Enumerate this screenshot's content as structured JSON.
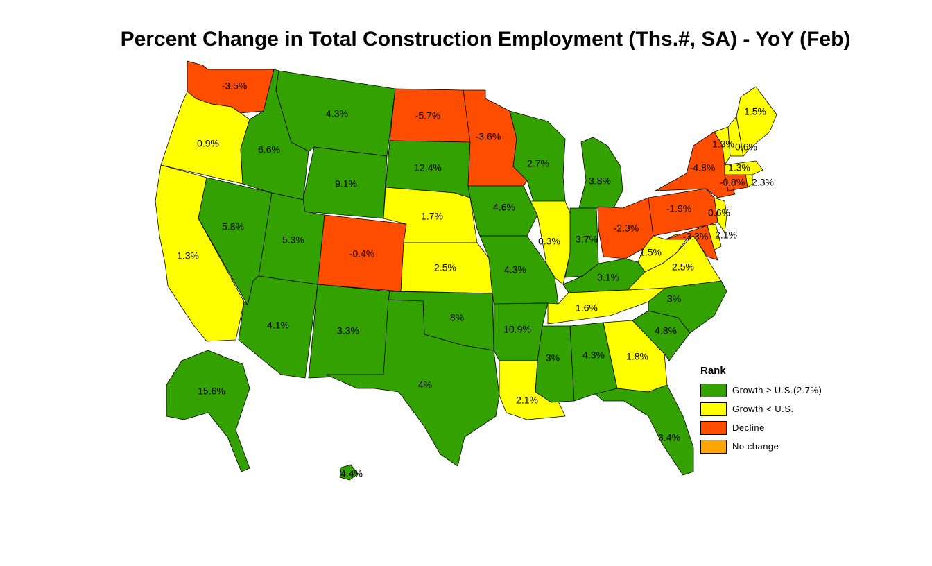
{
  "title": "Percent Change in Total Construction Employment (Ths.#, SA) - YoY (Feb)",
  "colors": {
    "growth_above": "#33a100",
    "growth_below": "#ffff00",
    "decline": "#ff4d00",
    "no_change": "#ffa500"
  },
  "legend": {
    "title": "Rank",
    "items": [
      {
        "label": "Growth ≥ U.S.(2.7%)",
        "color_key": "growth_above"
      },
      {
        "label": "Growth < U.S.",
        "color_key": "growth_below"
      },
      {
        "label": "Decline",
        "color_key": "decline"
      },
      {
        "label": "No change",
        "color_key": "no_change"
      }
    ]
  },
  "states": [
    {
      "id": "WA",
      "value": "-3.5%",
      "category": "decline"
    },
    {
      "id": "OR",
      "value": "0.9%",
      "category": "growth_below"
    },
    {
      "id": "CA",
      "value": "1.3%",
      "category": "growth_below"
    },
    {
      "id": "NV",
      "value": "5.8%",
      "category": "growth_above"
    },
    {
      "id": "ID",
      "value": "6.6%",
      "category": "growth_above"
    },
    {
      "id": "MT",
      "value": "4.3%",
      "category": "growth_above"
    },
    {
      "id": "WY",
      "value": "9.1%",
      "category": "growth_above"
    },
    {
      "id": "UT",
      "value": "5.3%",
      "category": "growth_above"
    },
    {
      "id": "AZ",
      "value": "4.1%",
      "category": "growth_above"
    },
    {
      "id": "CO",
      "value": "-0.4%",
      "category": "decline"
    },
    {
      "id": "NM",
      "value": "3.3%",
      "category": "growth_above"
    },
    {
      "id": "ND",
      "value": "-5.7%",
      "category": "decline"
    },
    {
      "id": "SD",
      "value": "12.4%",
      "category": "growth_above"
    },
    {
      "id": "NE",
      "value": "1.7%",
      "category": "growth_below"
    },
    {
      "id": "KS",
      "value": "2.5%",
      "category": "growth_below"
    },
    {
      "id": "OK",
      "value": "8%",
      "category": "growth_above"
    },
    {
      "id": "TX",
      "value": "4%",
      "category": "growth_above"
    },
    {
      "id": "MN",
      "value": "-3.6%",
      "category": "decline"
    },
    {
      "id": "IA",
      "value": "4.6%",
      "category": "growth_above"
    },
    {
      "id": "MO",
      "value": "4.3%",
      "category": "growth_above"
    },
    {
      "id": "AR",
      "value": "10.9%",
      "category": "growth_above"
    },
    {
      "id": "LA",
      "value": "2.1%",
      "category": "growth_below"
    },
    {
      "id": "WI",
      "value": "2.7%",
      "category": "growth_above"
    },
    {
      "id": "IL",
      "value": "0.3%",
      "category": "growth_below"
    },
    {
      "id": "MI",
      "value": "3.8%",
      "category": "growth_above"
    },
    {
      "id": "IN",
      "value": "3.7%",
      "category": "growth_above"
    },
    {
      "id": "OH",
      "value": "-2.3%",
      "category": "decline"
    },
    {
      "id": "KY",
      "value": "3.1%",
      "category": "growth_above"
    },
    {
      "id": "TN",
      "value": "1.6%",
      "category": "growth_below"
    },
    {
      "id": "MS",
      "value": "3%",
      "category": "growth_above"
    },
    {
      "id": "AL",
      "value": "4.3%",
      "category": "growth_above"
    },
    {
      "id": "GA",
      "value": "1.8%",
      "category": "growth_below"
    },
    {
      "id": "FL",
      "value": "3.4%",
      "category": "growth_above"
    },
    {
      "id": "SC",
      "value": "4.8%",
      "category": "growth_above"
    },
    {
      "id": "NC",
      "value": "3%",
      "category": "growth_above"
    },
    {
      "id": "VA",
      "value": "2.5%",
      "category": "growth_below"
    },
    {
      "id": "WV",
      "value": "1.5%",
      "category": "growth_below"
    },
    {
      "id": "PA",
      "value": "-1.9%",
      "category": "decline"
    },
    {
      "id": "NY",
      "value": "-4.8%",
      "category": "decline"
    },
    {
      "id": "MD",
      "value": "-3.3%",
      "category": "decline"
    },
    {
      "id": "DE",
      "value": "2.1%",
      "category": "growth_below"
    },
    {
      "id": "NJ",
      "value": "0.6%",
      "category": "growth_below"
    },
    {
      "id": "CT",
      "value": "-0.8%",
      "category": "decline"
    },
    {
      "id": "RI",
      "value": "2.3%",
      "category": "growth_below"
    },
    {
      "id": "MA",
      "value": "1.3%",
      "category": "growth_below"
    },
    {
      "id": "VT",
      "value": "1.3%",
      "category": "growth_below"
    },
    {
      "id": "NH",
      "value": "0.6%",
      "category": "growth_below"
    },
    {
      "id": "ME",
      "value": "1.5%",
      "category": "growth_below"
    },
    {
      "id": "AK",
      "value": "15.6%",
      "category": "growth_above"
    },
    {
      "id": "HI",
      "value": "4.4%",
      "category": "growth_above"
    }
  ]
}
